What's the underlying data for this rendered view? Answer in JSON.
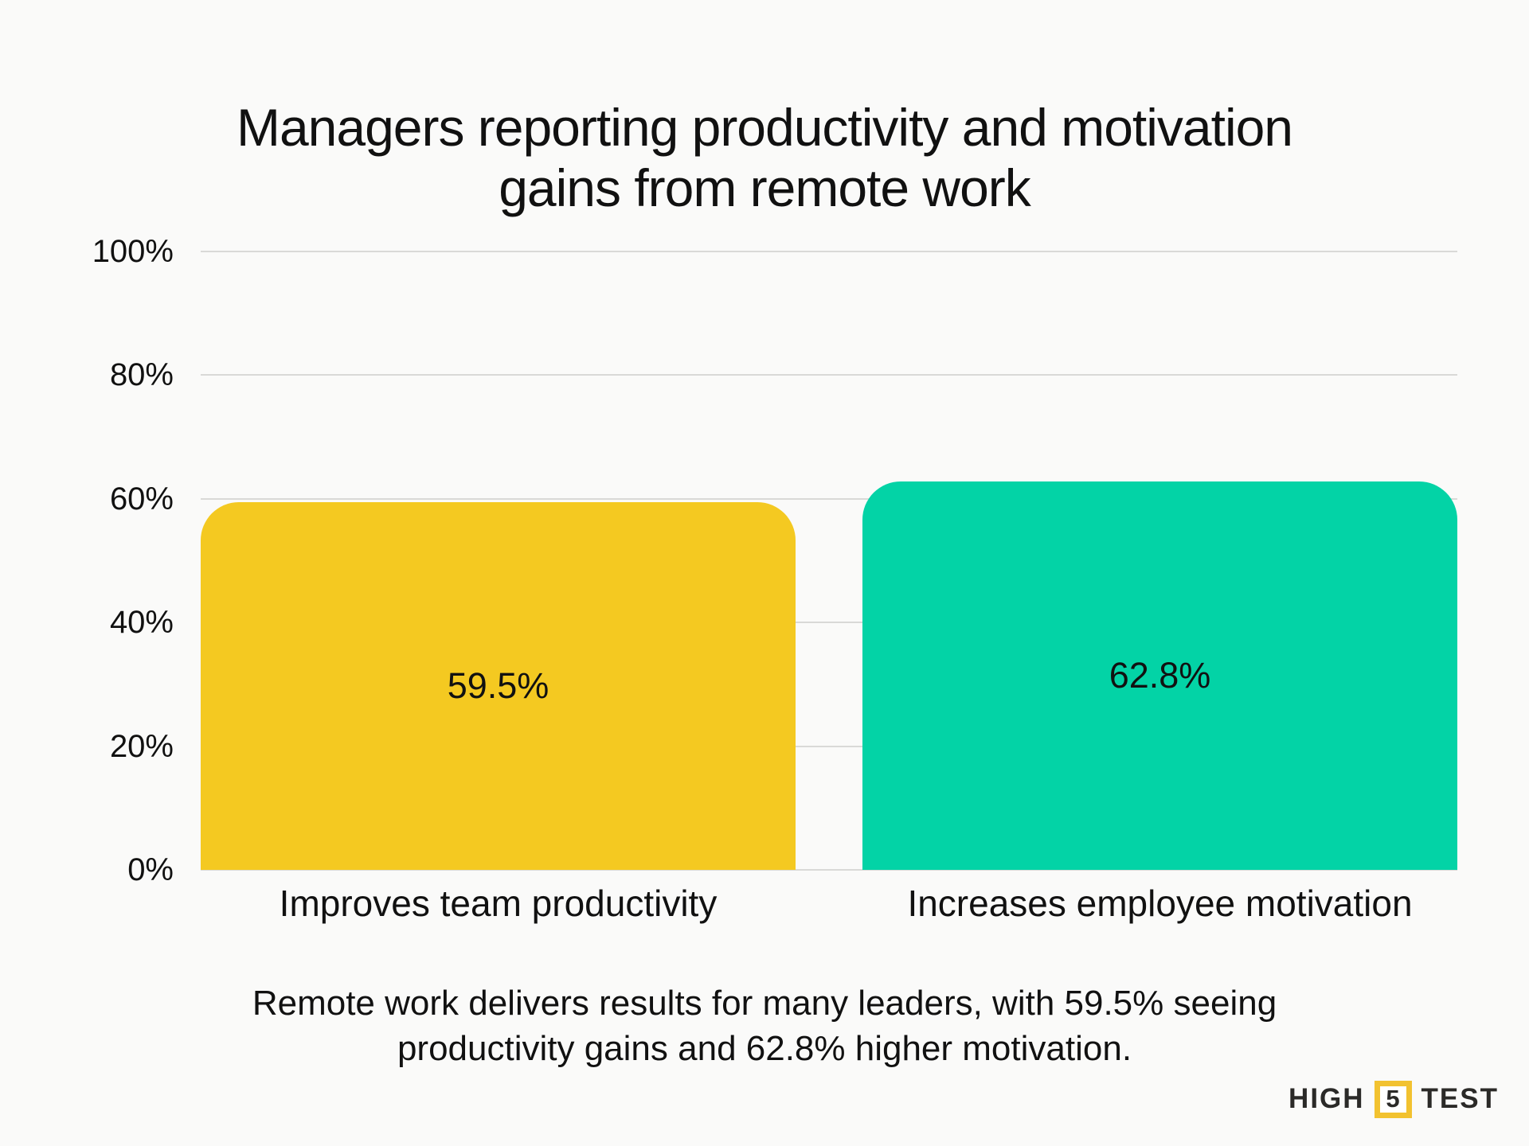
{
  "title": {
    "line1": "Managers reporting productivity and motivation",
    "line2": "gains from remote work"
  },
  "chart_data": {
    "type": "bar",
    "title": "Managers reporting productivity and motivation gains from remote work",
    "categories": [
      "Improves team productivity",
      "Increases employee motivation"
    ],
    "values": [
      59.5,
      62.8
    ],
    "value_labels": [
      "59.5%",
      "62.8%"
    ],
    "bar_colors": [
      "#F4C921",
      "#03D3A6"
    ],
    "xlabel": "",
    "ylabel": "",
    "ylim": [
      0,
      100
    ],
    "yticks": [
      0,
      20,
      40,
      60,
      80,
      100
    ],
    "ytick_labels": [
      "0%",
      "20%",
      "40%",
      "60%",
      "80%",
      "100%"
    ],
    "grid": "horizontal gridlines on",
    "legend": "none",
    "value_label_position": "centered inside bar"
  },
  "caption": {
    "line1": "Remote work delivers results for many leaders, with 59.5% seeing",
    "line2": "productivity gains and 62.8% higher motivation."
  },
  "logo": {
    "part1": "HIGH",
    "number": "5",
    "part2": "TEST",
    "accent_color": "#F2C230",
    "text_color": "#2B2A28"
  },
  "colors": {
    "background": "#FAFAF9",
    "gridline": "#D9D9D7",
    "text": "#111111",
    "bar_yellow": "#F4C921",
    "bar_teal": "#03D3A6"
  }
}
